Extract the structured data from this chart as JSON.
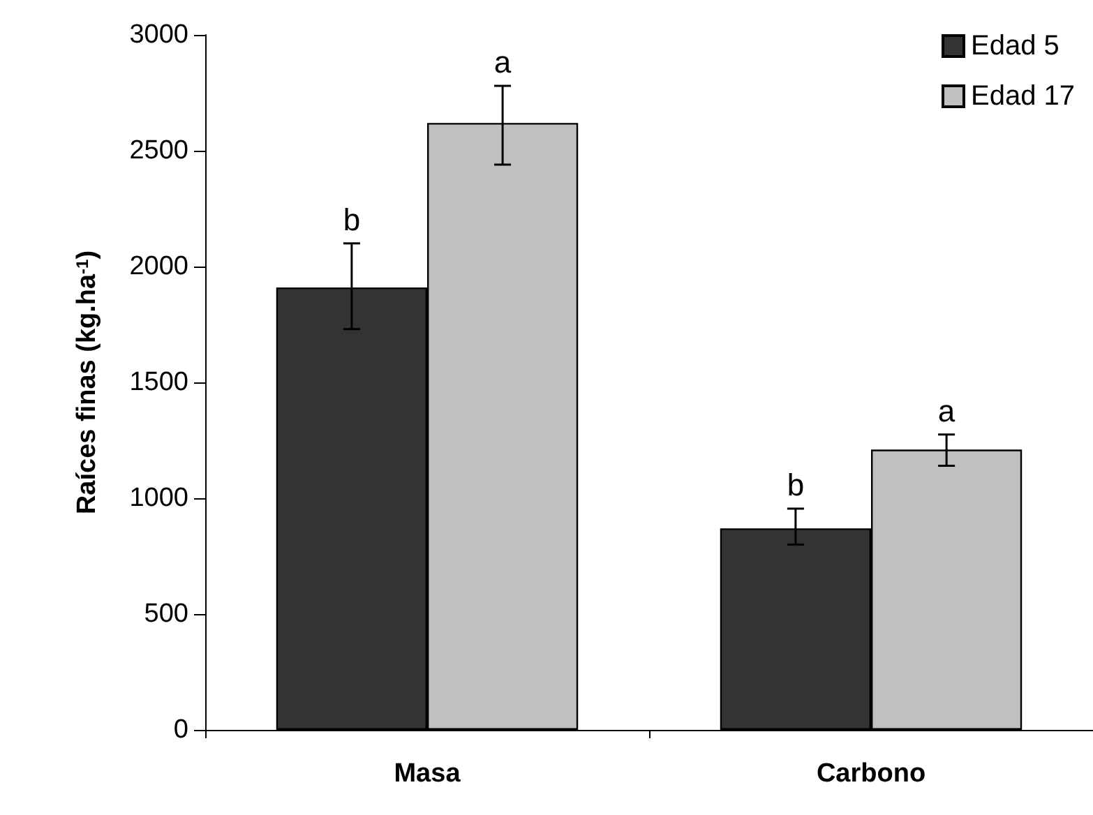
{
  "chart_data": {
    "type": "bar",
    "ylabel": "Raíces finas (kg.ha$^{-1}$)",
    "categories": [
      "Masa",
      "Carbono"
    ],
    "series": [
      {
        "name": "Edad 5",
        "color": "#333333",
        "values": [
          1910,
          870
        ],
        "errors": [
          [
            1730,
            2100
          ],
          [
            800,
            955
          ]
        ]
      },
      {
        "name": "Edad 17",
        "color": "#c0c0c0",
        "values": [
          2620,
          1210
        ],
        "errors": [
          [
            2440,
            2780
          ],
          [
            1140,
            1275
          ]
        ]
      }
    ],
    "ylim": [
      0,
      3000
    ],
    "yticks": [
      0,
      500,
      1000,
      1500,
      2000,
      2500,
      3000
    ],
    "annotations": [
      {
        "text": "b",
        "x": "Masa",
        "y": 1910
      },
      {
        "text": "a",
        "x": "Masa",
        "y": 2620
      },
      {
        "text": "b",
        "x": "Carbono",
        "y": 870
      },
      {
        "text": "a",
        "x": "Carbono",
        "y": 1210
      }
    ],
    "grid": false,
    "legend": "top right"
  }
}
